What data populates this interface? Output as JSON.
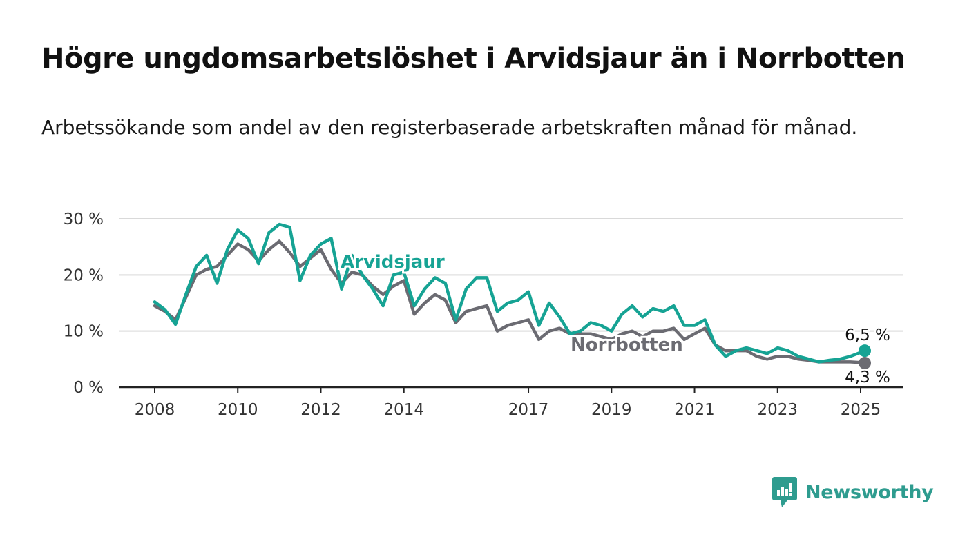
{
  "title": "Högre ungdomsarbetslöshet i Arvidsjaur än i Norrbotten",
  "subtitle": "Arbetssökande som andel av den registerbaserade arbetskraften månad för månad.",
  "brand": {
    "name": "Newsworthy"
  },
  "colors": {
    "arvidsjaur": "#16a394",
    "norrbotten": "#6b6b72",
    "grid": "#d9d9d9",
    "axis": "#222222"
  },
  "chart_data": {
    "type": "line",
    "title": "Högre ungdomsarbetslöshet i Arvidsjaur än i Norrbotten",
    "ylabel": "",
    "xlabel": "",
    "ylim": [
      0,
      30
    ],
    "y_ticks": [
      "0 %",
      "10 %",
      "20 %",
      "30 %"
    ],
    "x_ticks": [
      "2008",
      "2010",
      "2012",
      "2014",
      "2017",
      "2019",
      "2021",
      "2023",
      "2025"
    ],
    "grid": true,
    "legend": "inline labels",
    "end_labels": {
      "Arvidsjaur": "6,5 %",
      "Norrbotten": "4,3 %"
    },
    "series": [
      {
        "name": "Arvidsjaur",
        "x": [
          2008.0,
          2008.25,
          2008.5,
          2008.75,
          2009.0,
          2009.25,
          2009.5,
          2009.75,
          2010.0,
          2010.25,
          2010.5,
          2010.75,
          2011.0,
          2011.25,
          2011.5,
          2011.75,
          2012.0,
          2012.25,
          2012.5,
          2012.75,
          2013.0,
          2013.25,
          2013.5,
          2013.75,
          2014.0,
          2014.25,
          2014.5,
          2014.75,
          2015.0,
          2015.25,
          2015.5,
          2015.75,
          2016.0,
          2016.25,
          2016.5,
          2016.75,
          2017.0,
          2017.25,
          2017.5,
          2017.75,
          2018.0,
          2018.25,
          2018.5,
          2018.75,
          2019.0,
          2019.25,
          2019.5,
          2019.75,
          2020.0,
          2020.25,
          2020.5,
          2020.75,
          2021.0,
          2021.25,
          2021.5,
          2021.75,
          2022.0,
          2022.25,
          2022.5,
          2022.75,
          2023.0,
          2023.25,
          2023.5,
          2023.75,
          2024.0,
          2024.25,
          2024.5,
          2024.75,
          2025.0,
          2025.1
        ],
        "y": [
          15.2,
          13.8,
          11.2,
          16.5,
          21.5,
          23.5,
          18.5,
          24.5,
          28.0,
          26.5,
          22.0,
          27.5,
          29.0,
          28.5,
          19.0,
          23.5,
          25.5,
          26.5,
          17.5,
          23.5,
          20.0,
          17.5,
          14.5,
          20.0,
          20.5,
          14.5,
          17.5,
          19.5,
          18.5,
          12.0,
          17.5,
          19.5,
          19.5,
          13.5,
          15.0,
          15.5,
          17.0,
          11.0,
          15.0,
          12.5,
          9.5,
          10.0,
          11.5,
          11.0,
          10.0,
          13.0,
          14.5,
          12.5,
          14.0,
          13.5,
          14.5,
          11.0,
          11.0,
          12.0,
          7.5,
          5.5,
          6.5,
          7.0,
          6.5,
          6.0,
          7.0,
          6.5,
          5.5,
          5.0,
          4.5,
          4.8,
          5.0,
          5.5,
          6.2,
          6.5
        ]
      },
      {
        "name": "Norrbotten",
        "x": [
          2008.0,
          2008.25,
          2008.5,
          2008.75,
          2009.0,
          2009.25,
          2009.5,
          2009.75,
          2010.0,
          2010.25,
          2010.5,
          2010.75,
          2011.0,
          2011.25,
          2011.5,
          2011.75,
          2012.0,
          2012.25,
          2012.5,
          2012.75,
          2013.0,
          2013.25,
          2013.5,
          2013.75,
          2014.0,
          2014.25,
          2014.5,
          2014.75,
          2015.0,
          2015.25,
          2015.5,
          2015.75,
          2016.0,
          2016.25,
          2016.5,
          2016.75,
          2017.0,
          2017.25,
          2017.5,
          2017.75,
          2018.0,
          2018.25,
          2018.5,
          2018.75,
          2019.0,
          2019.25,
          2019.5,
          2019.75,
          2020.0,
          2020.25,
          2020.5,
          2020.75,
          2021.0,
          2021.25,
          2021.5,
          2021.75,
          2022.0,
          2022.25,
          2022.5,
          2022.75,
          2023.0,
          2023.25,
          2023.5,
          2023.75,
          2024.0,
          2024.25,
          2024.5,
          2024.75,
          2025.0,
          2025.1
        ],
        "y": [
          14.5,
          13.5,
          12.0,
          16.0,
          20.0,
          21.0,
          21.5,
          23.5,
          25.5,
          24.5,
          22.5,
          24.5,
          26.0,
          24.0,
          21.5,
          23.0,
          24.5,
          21.0,
          18.5,
          20.5,
          20.0,
          18.0,
          16.5,
          18.0,
          19.0,
          13.0,
          15.0,
          16.5,
          15.5,
          11.5,
          13.5,
          14.0,
          14.5,
          10.0,
          11.0,
          11.5,
          12.0,
          8.5,
          10.0,
          10.5,
          9.5,
          9.5,
          9.5,
          9.0,
          8.5,
          9.5,
          10.0,
          9.0,
          10.0,
          10.0,
          10.5,
          8.5,
          9.5,
          10.5,
          7.5,
          6.5,
          6.5,
          6.5,
          5.5,
          5.0,
          5.5,
          5.5,
          5.0,
          4.8,
          4.5,
          4.5,
          4.5,
          4.5,
          4.4,
          4.3
        ]
      }
    ]
  }
}
